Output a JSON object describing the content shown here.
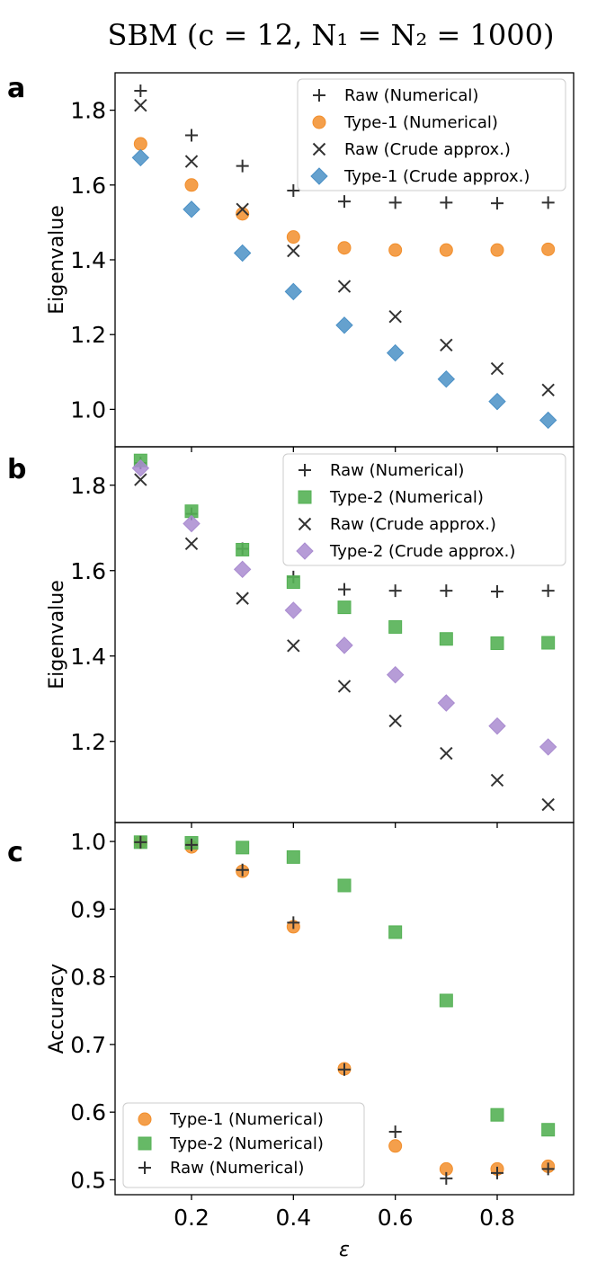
{
  "figure": {
    "title": "SBM (c = 12, N₁ = N₂ = 1000)"
  },
  "chart_data": [
    {
      "panel": "a",
      "type": "scatter",
      "xlabel": "",
      "ylabel": "Eigenvalue",
      "xlim": [
        0.05,
        0.95
      ],
      "ylim": [
        0.9,
        1.9
      ],
      "yticks": [
        1.0,
        1.2,
        1.4,
        1.6,
        1.8
      ],
      "ytick_labels": [
        "1.0",
        "1.2",
        "1.4",
        "1.6",
        "1.8"
      ],
      "x_tick_labels_visible": false,
      "legend_position": "top-right",
      "x": [
        0.1,
        0.2,
        0.3,
        0.4,
        0.5,
        0.6,
        0.7,
        0.8,
        0.9
      ],
      "series": [
        {
          "name": "Raw (Numerical)",
          "marker": "plus",
          "color": "#333333",
          "values": [
            1.852,
            1.733,
            1.651,
            1.585,
            1.556,
            1.553,
            1.553,
            1.551,
            1.553
          ]
        },
        {
          "name": "Type-1 (Numerical)",
          "marker": "circle",
          "color": "#f28e2b",
          "values": [
            1.71,
            1.6,
            1.523,
            1.461,
            1.432,
            1.426,
            1.426,
            1.426,
            1.428
          ]
        },
        {
          "name": "Raw (Crude approx.)",
          "marker": "x",
          "color": "#333333",
          "values": [
            1.813,
            1.663,
            1.535,
            1.424,
            1.329,
            1.248,
            1.172,
            1.109,
            1.052
          ]
        },
        {
          "name": "Type-1 (Crude approx.)",
          "marker": "diamond",
          "color": "#4a90c6",
          "values": [
            1.673,
            1.535,
            1.418,
            1.315,
            1.225,
            1.151,
            1.081,
            1.021,
            0.971
          ]
        }
      ]
    },
    {
      "panel": "b",
      "type": "scatter",
      "xlabel": "",
      "ylabel": "Eigenvalue",
      "xlim": [
        0.05,
        0.95
      ],
      "ylim": [
        1.01,
        1.89
      ],
      "yticks": [
        1.2,
        1.4,
        1.6,
        1.8
      ],
      "ytick_labels": [
        "1.2",
        "1.4",
        "1.6",
        "1.8"
      ],
      "x_tick_labels_visible": false,
      "legend_position": "top-right",
      "x": [
        0.1,
        0.2,
        0.3,
        0.4,
        0.5,
        0.6,
        0.7,
        0.8,
        0.9
      ],
      "series": [
        {
          "name": "Raw (Numerical)",
          "marker": "plus",
          "color": "#333333",
          "values": [
            1.852,
            1.733,
            1.651,
            1.585,
            1.556,
            1.553,
            1.553,
            1.551,
            1.553
          ]
        },
        {
          "name": "Type-2 (Numerical)",
          "marker": "square",
          "color": "#55b155",
          "values": [
            1.858,
            1.739,
            1.649,
            1.573,
            1.514,
            1.468,
            1.44,
            1.43,
            1.431
          ]
        },
        {
          "name": "Raw (Crude approx.)",
          "marker": "x",
          "color": "#333333",
          "values": [
            1.813,
            1.663,
            1.535,
            1.424,
            1.329,
            1.248,
            1.172,
            1.109,
            1.052
          ]
        },
        {
          "name": "Type-2 (Crude approx.)",
          "marker": "diamond",
          "color": "#a98bd0",
          "values": [
            1.84,
            1.71,
            1.603,
            1.507,
            1.425,
            1.356,
            1.29,
            1.236,
            1.187
          ]
        }
      ]
    },
    {
      "panel": "c",
      "type": "scatter",
      "xlabel": "ε",
      "ylabel": "Accuracy",
      "xlim": [
        0.05,
        0.95
      ],
      "ylim": [
        0.478,
        1.028
      ],
      "xticks": [
        0.2,
        0.4,
        0.6,
        0.8
      ],
      "xtick_labels": [
        "0.2",
        "0.4",
        "0.6",
        "0.8"
      ],
      "yticks": [
        0.5,
        0.6,
        0.7,
        0.8,
        0.9,
        1.0
      ],
      "ytick_labels": [
        "0.5",
        "0.6",
        "0.7",
        "0.8",
        "0.9",
        "1.0"
      ],
      "x_tick_labels_visible": true,
      "legend_position": "bottom-left",
      "x": [
        0.1,
        0.2,
        0.3,
        0.4,
        0.5,
        0.6,
        0.7,
        0.8,
        0.9
      ],
      "series": [
        {
          "name": "Type-1 (Numerical)",
          "marker": "circle",
          "color": "#f28e2b",
          "values": [
            0.999,
            0.992,
            0.956,
            0.874,
            0.664,
            0.55,
            0.516,
            0.516,
            0.52
          ]
        },
        {
          "name": "Type-2 (Numerical)",
          "marker": "square",
          "color": "#55b155",
          "values": [
            0.999,
            0.998,
            0.991,
            0.977,
            0.935,
            0.866,
            0.765,
            0.596,
            0.574
          ]
        },
        {
          "name": "Raw (Numerical)",
          "marker": "plus",
          "color": "#333333",
          "values": [
            0.999,
            0.995,
            0.958,
            0.88,
            0.663,
            0.571,
            0.502,
            0.51,
            0.516
          ]
        }
      ]
    }
  ]
}
